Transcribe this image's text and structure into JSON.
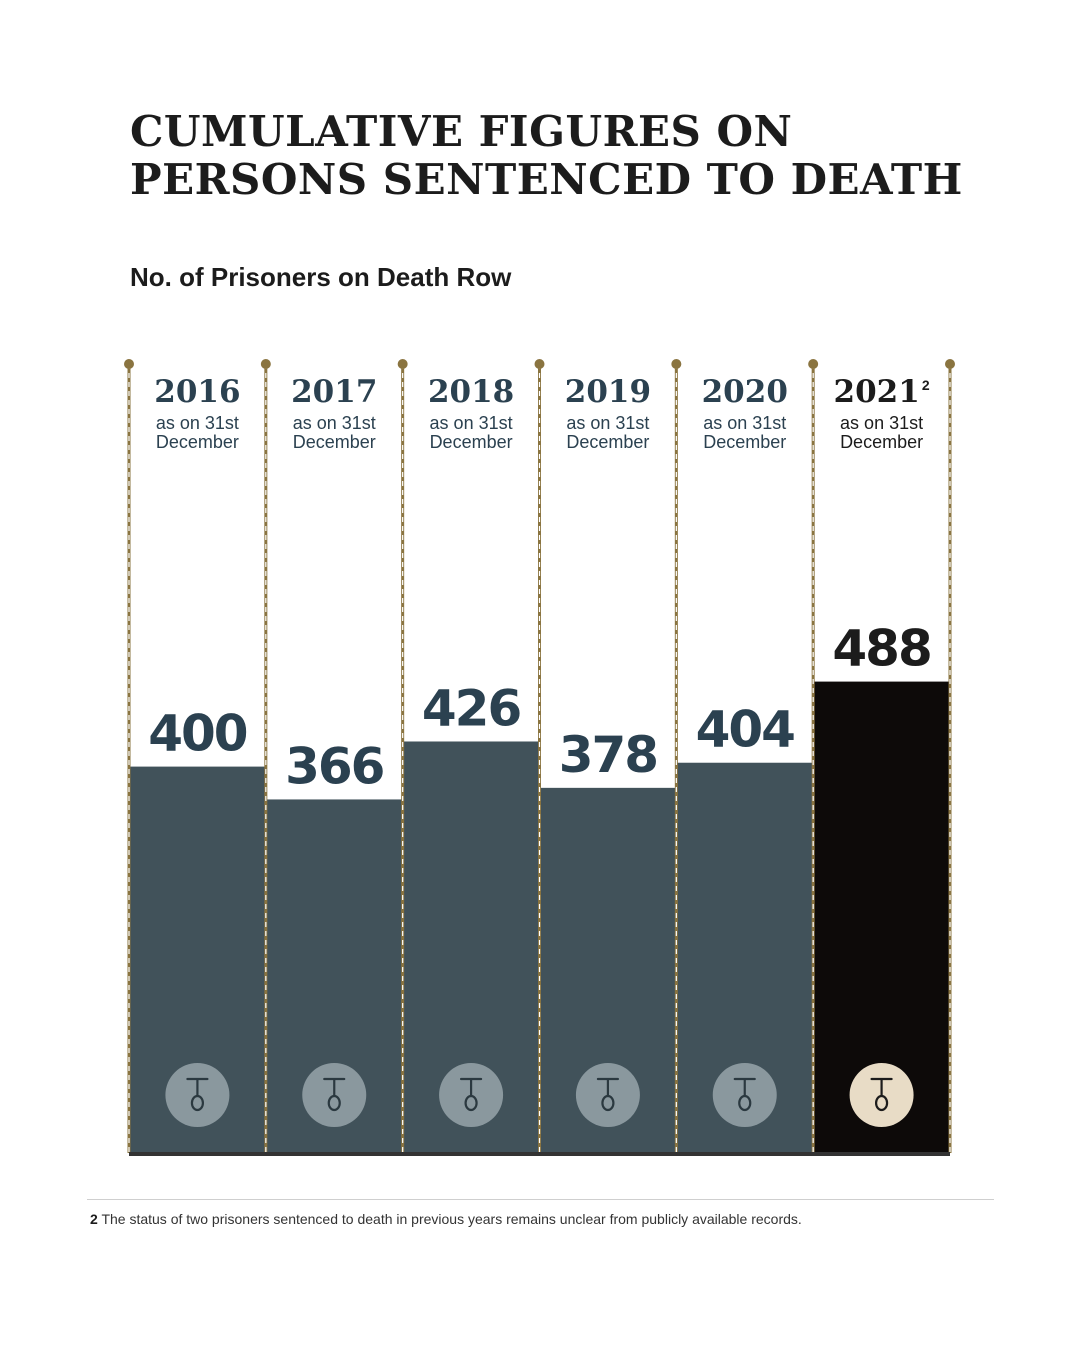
{
  "title_line1": "CUMULATIVE FIGURES ON",
  "title_line2": "PERSONS SENTENCED TO DEATH",
  "subtitle": "No. of Prisoners on Death Row",
  "colors": {
    "bar": "#41525a",
    "bar_highlight": "#0d0a09",
    "icon_circle": "#8a989e",
    "icon_circle_highlight": "#e8dcc6",
    "divider": "#8a7440",
    "year_text": "#2b4150",
    "highlight_text": "#1c1c1c"
  },
  "chart_data": {
    "type": "bar",
    "title": "No. of Prisoners on Death Row",
    "categories": [
      "2016",
      "2017",
      "2018",
      "2019",
      "2020",
      "2021"
    ],
    "category_sublabels": [
      "as on 31st December",
      "as on 31st December",
      "as on 31st December",
      "as on 31st December",
      "as on 31st December",
      "as on 31st December"
    ],
    "category_superscripts": [
      "",
      "",
      "",
      "",
      "",
      "2"
    ],
    "values": [
      400,
      366,
      426,
      378,
      404,
      488
    ],
    "data_labels": [
      "400",
      "366",
      "426",
      "378",
      "404",
      "488"
    ],
    "highlight_index": 5,
    "ylim": [
      0,
      560
    ],
    "grid": false,
    "legend": "none",
    "icon": "gallows-noose-icon"
  },
  "footnote": {
    "number": "2",
    "text": "The status of two prisoners sentenced to death in previous years remains unclear from publicly available records."
  }
}
